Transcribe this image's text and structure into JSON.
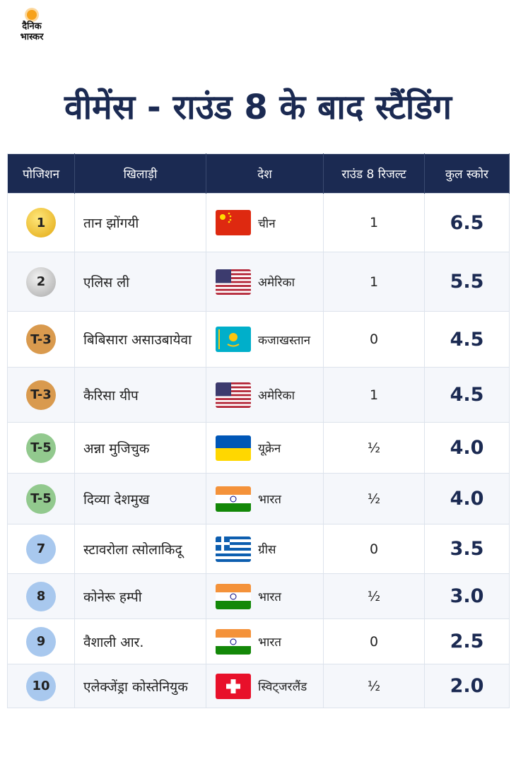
{
  "logo": {
    "line1": "दैनिक",
    "line2": "भास्कर"
  },
  "title": "वीमेंस - राउंड 8 के बाद स्टैंडिंग",
  "table": {
    "columns": [
      "पोजिशन",
      "खिलाड़ी",
      "देश",
      "राउंड 8 रिजल्ट",
      "कुल स्कोर"
    ],
    "rows": [
      [
        "1",
        "तान झोंगयी",
        "चीन",
        "1",
        "6.5"
      ],
      [
        "2",
        "एलिस ली",
        "अमेरिका",
        "1",
        "5.5"
      ],
      [
        "T-3",
        "बिबिसारा असाउबायेवा",
        "कजाखस्तान",
        "0",
        "4.5"
      ],
      [
        "T-3",
        "कैरिसा यीप",
        "अमेरिका",
        "1",
        "4.5"
      ],
      [
        "T-5",
        "अन्ना मुजिचुक",
        "यूक्रेन",
        "½",
        "4.0"
      ],
      [
        "T-5",
        "दिव्या देशमुख",
        "भारत",
        "½",
        "4.0"
      ],
      [
        "7",
        "स्टावरोला त्सोलाकिदू",
        "ग्रीस",
        "0",
        "3.5"
      ],
      [
        "8",
        "कोनेरू हम्पी",
        "भारत",
        "½",
        "3.0"
      ],
      [
        "9",
        "वैशाली आर.",
        "भारत",
        "0",
        "2.5"
      ],
      [
        "10",
        "एलेक्जेंड्रा कोस्तेनियुक",
        "स्विट्जरलैंड",
        "½",
        "2.0"
      ]
    ]
  }
}
